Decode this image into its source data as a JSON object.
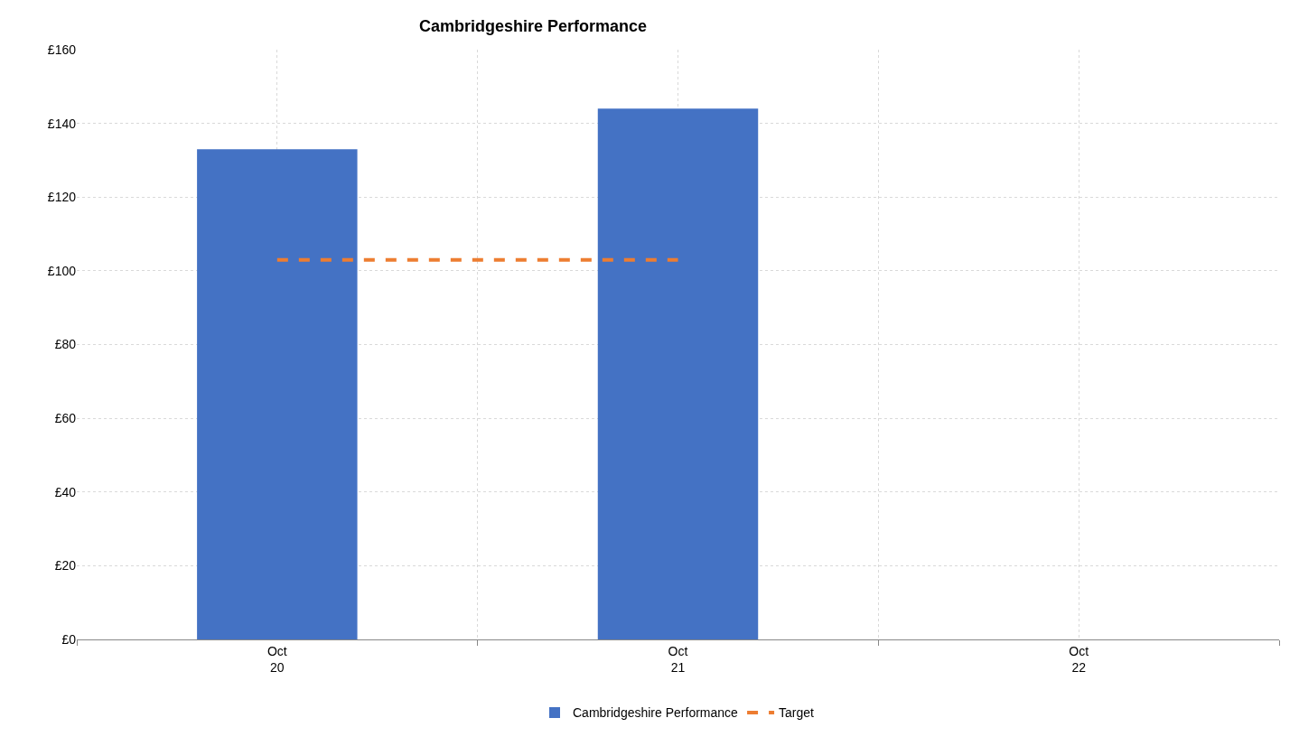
{
  "chart_data": {
    "type": "bar",
    "title": "Cambridgeshire Performance",
    "categories": [
      "Oct\n20",
      "Oct\n21",
      "Oct\n22"
    ],
    "series": [
      {
        "name": "Cambridgeshire Performance",
        "color": "#4472c4",
        "values": [
          133,
          144,
          null
        ]
      },
      {
        "name": "Target",
        "type": "line",
        "color": "#ed7d31",
        "line_style": "dashed",
        "marker": "none",
        "values": [
          103,
          103,
          null
        ]
      }
    ],
    "ylim": [
      0,
      160
    ],
    "yticks": [
      {
        "value": 0,
        "label": "£0"
      },
      {
        "value": 20,
        "label": "£20"
      },
      {
        "value": 40,
        "label": "£40"
      },
      {
        "value": 60,
        "label": "£60"
      },
      {
        "value": 80,
        "label": "£80"
      },
      {
        "value": 100,
        "label": "£100"
      },
      {
        "value": 120,
        "label": "£120"
      },
      {
        "value": 140,
        "label": "£140"
      },
      {
        "value": 160,
        "label": "£160"
      }
    ],
    "grid": true,
    "legend": "bottom"
  }
}
